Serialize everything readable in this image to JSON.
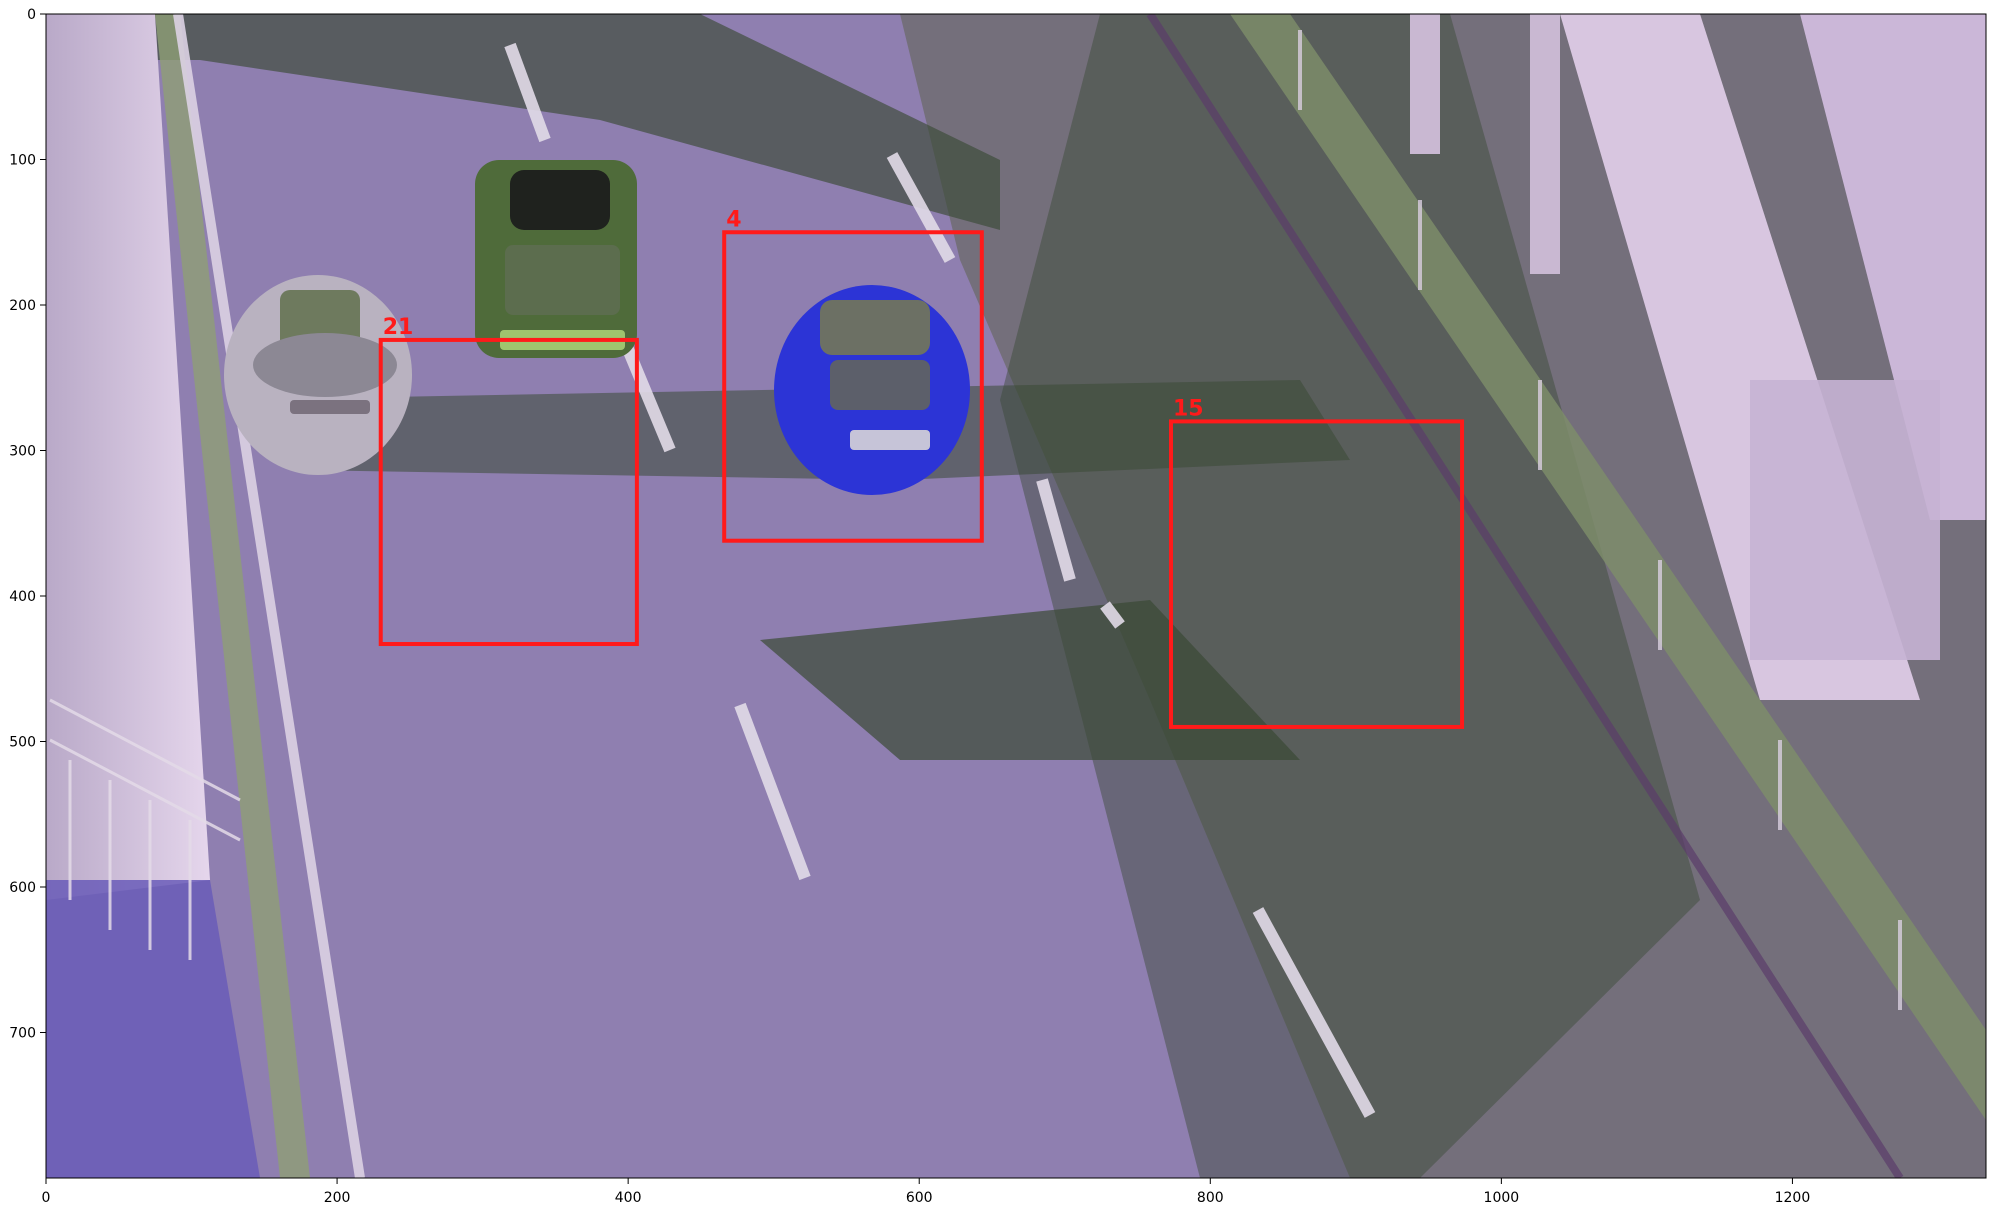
{
  "image": {
    "x_range": [
      0,
      1333
    ],
    "y_range": [
      0,
      800
    ],
    "x_ticks": [
      0,
      200,
      400,
      600,
      800,
      1000,
      1200
    ],
    "y_ticks": [
      0,
      100,
      200,
      300,
      400,
      500,
      600,
      700
    ]
  },
  "x_tick_labels": [
    "0",
    "200",
    "400",
    "600",
    "800",
    "1000",
    "1200"
  ],
  "y_tick_labels": [
    "0",
    "100",
    "200",
    "300",
    "400",
    "500",
    "600",
    "700"
  ],
  "detections": [
    {
      "label": "21",
      "x1": 230,
      "y1": 224,
      "x2": 406,
      "y2": 433
    },
    {
      "label": "4",
      "x1": 466,
      "y1": 150,
      "x2": 643,
      "y2": 362
    },
    {
      "label": "15",
      "x1": 773,
      "y1": 280,
      "x2": 973,
      "y2": 490
    }
  ],
  "colors": {
    "box": "#ff1a1a",
    "road_asphalt": "#8f7fb0",
    "road_shadow": "#3a4a36",
    "structure": "#d8c6e0",
    "axis": "#000000",
    "car_21": "#b9b2c0",
    "car_4": "#4f6b3a",
    "car_15": "#2c34d6"
  }
}
